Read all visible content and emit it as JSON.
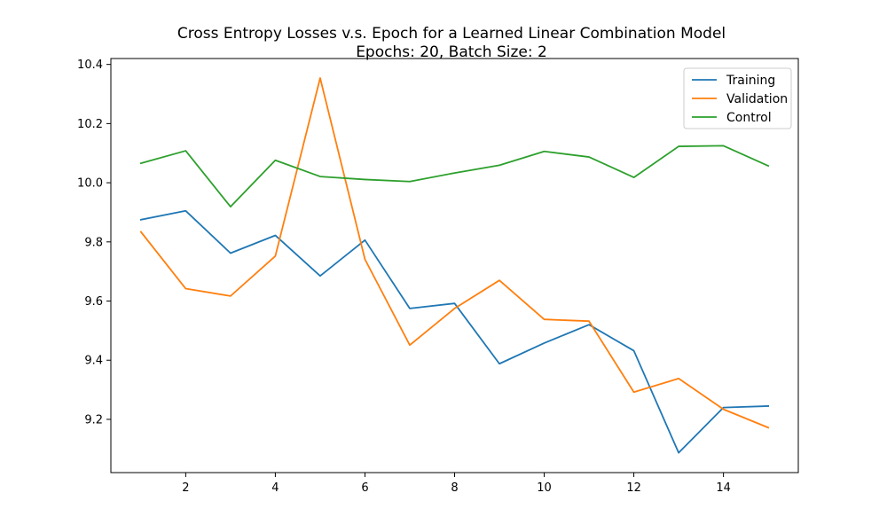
{
  "chart_data": {
    "type": "line",
    "title_lines": [
      "Cross Entropy Losses v.s. Epoch for a Learned Linear Combination Model",
      "Epochs: 20, Batch Size: 2"
    ],
    "xlabel": "",
    "ylabel": "",
    "x": [
      1,
      2,
      3,
      4,
      5,
      6,
      7,
      8,
      9,
      10,
      11,
      12,
      13,
      14,
      15
    ],
    "xlim": [
      0.33,
      15.67
    ],
    "ylim": [
      9.02,
      10.42
    ],
    "x_ticks": [
      2,
      4,
      6,
      8,
      10,
      12,
      14
    ],
    "y_ticks": [
      9.2,
      9.4,
      9.6,
      9.8,
      10.0,
      10.2,
      10.4
    ],
    "x_tick_labels": [
      "2",
      "4",
      "6",
      "8",
      "10",
      "12",
      "14"
    ],
    "y_tick_labels": [
      "9.2",
      "9.4",
      "9.6",
      "9.8",
      "10.0",
      "10.2",
      "10.4"
    ],
    "grid": false,
    "legend_position": "top-right",
    "series": [
      {
        "name": "Training",
        "color": "#1f77b4",
        "values": [
          9.875,
          9.905,
          9.762,
          9.822,
          9.685,
          9.806,
          9.575,
          9.592,
          9.388,
          9.458,
          9.52,
          9.432,
          9.087,
          9.24,
          9.245
        ]
      },
      {
        "name": "Validation",
        "color": "#ff7f0e",
        "values": [
          9.834,
          9.642,
          9.617,
          9.752,
          10.354,
          9.741,
          9.451,
          9.575,
          9.67,
          9.538,
          9.532,
          9.292,
          9.338,
          9.234,
          9.172
        ]
      },
      {
        "name": "Control",
        "color": "#2ca02c",
        "values": [
          10.066,
          10.108,
          9.919,
          10.076,
          10.021,
          10.011,
          10.004,
          10.033,
          10.059,
          10.106,
          10.087,
          10.018,
          10.123,
          10.125,
          10.057
        ]
      }
    ]
  }
}
